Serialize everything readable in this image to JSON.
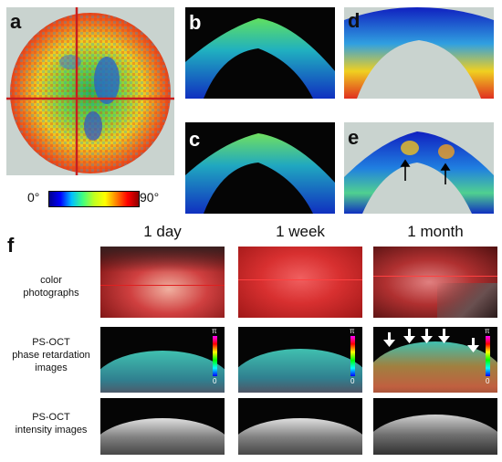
{
  "panels": {
    "a": "a",
    "b": "b",
    "c": "c",
    "d": "d",
    "e": "e",
    "f": "f"
  },
  "colorbar": {
    "min_label": "0°",
    "max_label": "90°"
  },
  "columns": [
    "1 day",
    "1 week",
    "1 month"
  ],
  "rows": [
    {
      "lines": [
        "color",
        "photographs"
      ]
    },
    {
      "lines": [
        "PS-OCT",
        "phase retardation",
        "images"
      ]
    },
    {
      "lines": [
        "PS-OCT",
        "intensity images"
      ]
    }
  ],
  "scale_labels": {
    "top": "π",
    "bottom": "0"
  },
  "colors": {
    "jet_start": "#00008f",
    "crosshair": "#d42020",
    "arrow": "#ffffff"
  }
}
